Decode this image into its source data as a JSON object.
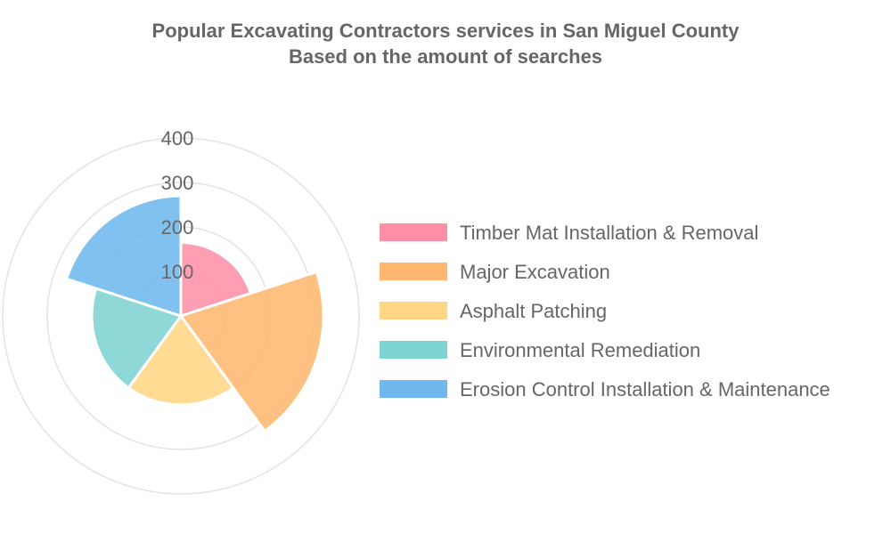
{
  "chart_data": {
    "type": "polarArea",
    "title": "Popular Excavating Contractors services in San Miguel County",
    "subtitle": "Based on the amount of searches",
    "r_ticks": [
      "100",
      "200",
      "300",
      "400"
    ],
    "r_max": 400,
    "categories": [
      "Timber Mat Installation & Removal",
      "Major Excavation",
      "Asphalt Patching",
      "Environmental Remediation",
      "Erosion Control Installation & Maintenance"
    ],
    "values": [
      165,
      320,
      200,
      200,
      270
    ],
    "colors": [
      "#ff8fa8",
      "#ffb870",
      "#ffd685",
      "#7ed4d2",
      "#70b8ee"
    ],
    "legend_position": "right"
  }
}
